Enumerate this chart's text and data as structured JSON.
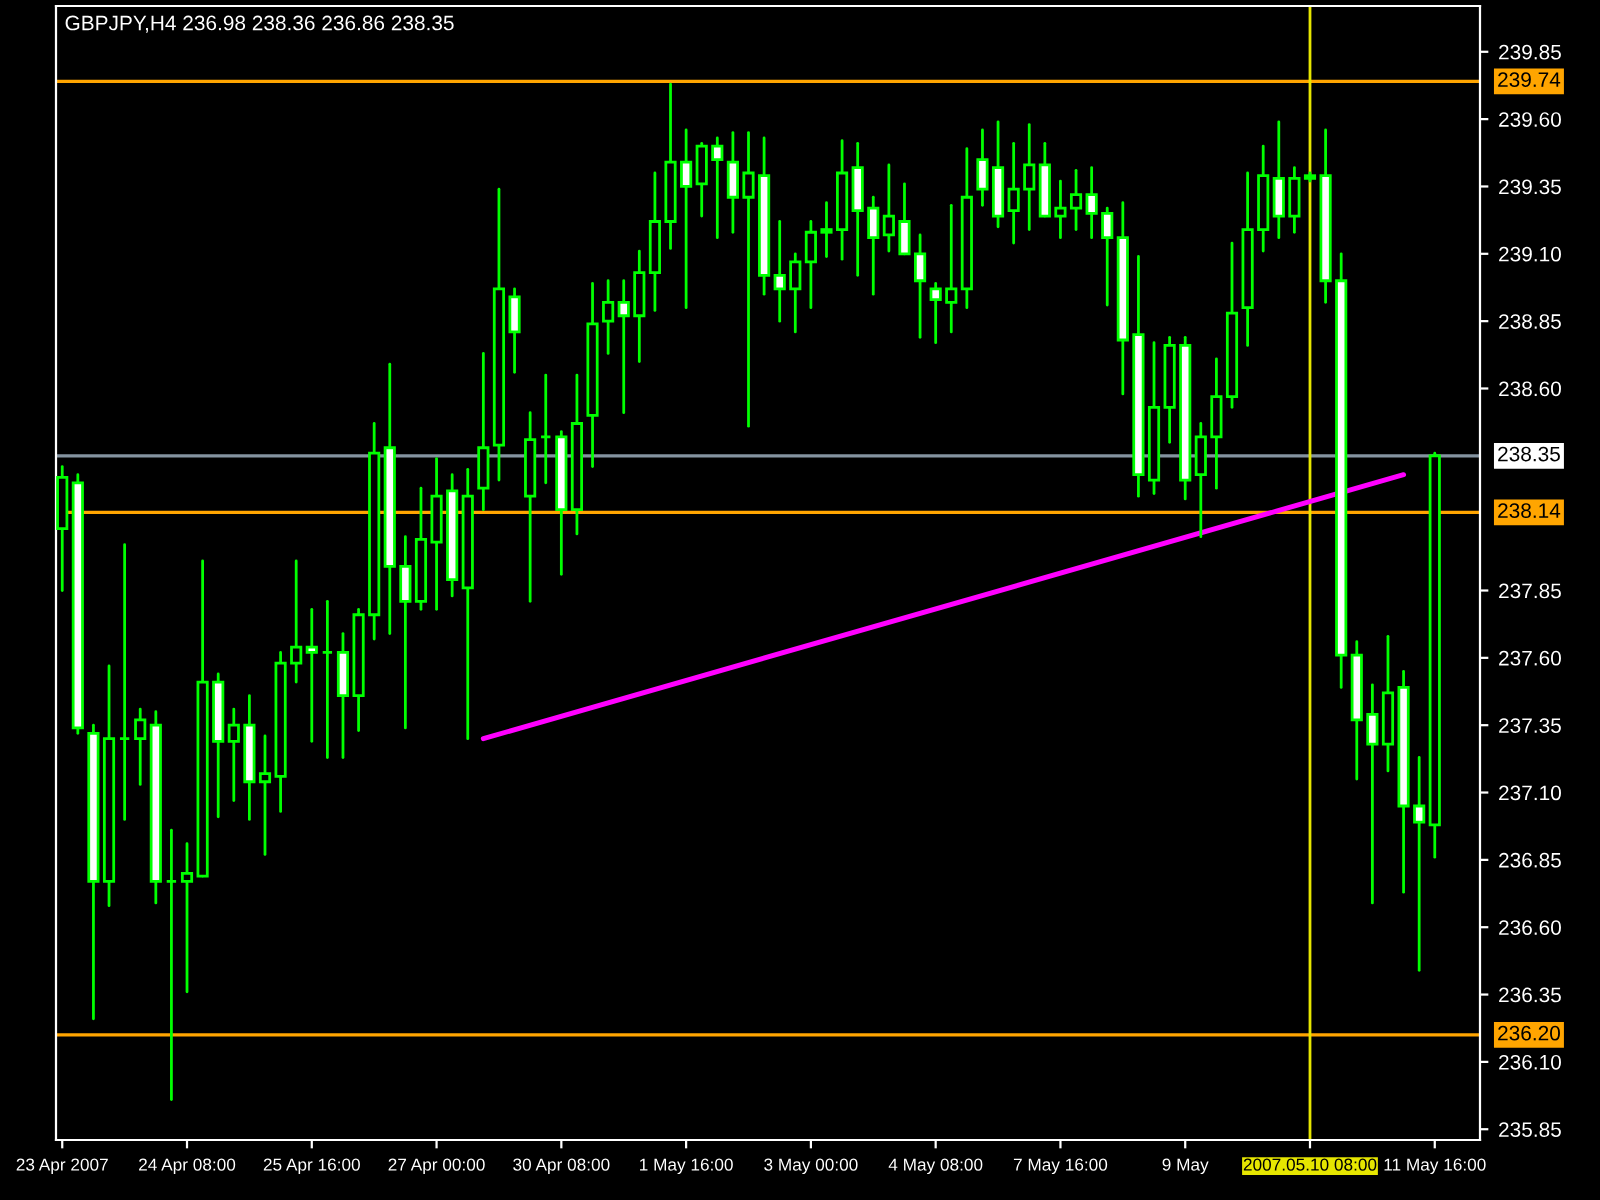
{
  "chart_data": {
    "type": "candlestick",
    "title": "GBPJPY,H4 236.98 238.36 236.86 238.35",
    "categories": [
      "23 Apr 2007",
      null,
      null,
      null,
      null,
      null,
      null,
      null,
      "24 Apr 08:00",
      null,
      null,
      null,
      null,
      null,
      null,
      null,
      "25 Apr 16:00",
      null,
      null,
      null,
      null,
      null,
      null,
      null,
      "27 Apr 00:00",
      null,
      null,
      null,
      null,
      null,
      null,
      null,
      "30 Apr 08:00",
      null,
      null,
      null,
      null,
      null,
      null,
      null,
      "1 May 16:00",
      null,
      null,
      null,
      null,
      null,
      null,
      null,
      "3 May 00:00",
      null,
      null,
      null,
      null,
      null,
      null,
      null,
      "4 May 08:00",
      null,
      null,
      null,
      null,
      null,
      null,
      null,
      "7 May 16:00",
      null,
      null,
      null,
      null,
      null,
      null,
      null,
      "9 May",
      null,
      null,
      null,
      null,
      null,
      null,
      null,
      "2007.05.10 08:00",
      null,
      null,
      null,
      null,
      null,
      null,
      null,
      "11 May 16:00"
    ],
    "ylim": [
      235.81,
      240.02
    ],
    "yticks": [
      {
        "value": 235.85,
        "label": "235.85"
      },
      {
        "value": 236.1,
        "label": "236.10"
      },
      {
        "value": 236.35,
        "label": "236.35"
      },
      {
        "value": 236.6,
        "label": "236.60"
      },
      {
        "value": 236.85,
        "label": "236.85"
      },
      {
        "value": 237.1,
        "label": "237.10"
      },
      {
        "value": 237.35,
        "label": "237.35"
      },
      {
        "value": 237.6,
        "label": "237.60"
      },
      {
        "value": 237.85,
        "label": "237.85"
      },
      {
        "value": 238.6,
        "label": "238.60"
      },
      {
        "value": 238.85,
        "label": "238.85"
      },
      {
        "value": 239.1,
        "label": "239.10"
      },
      {
        "value": 239.35,
        "label": "239.35"
      },
      {
        "value": 239.6,
        "label": "239.60"
      },
      {
        "value": 239.85,
        "label": "239.85"
      }
    ],
    "ref_lines": [
      {
        "axis": "y",
        "value": 239.74,
        "label": "239.74",
        "color": "#ffa500"
      },
      {
        "axis": "y",
        "value": 238.35,
        "label": "238.35",
        "color": "#8493a0"
      },
      {
        "axis": "y",
        "value": 238.14,
        "label": "238.14",
        "color": "#ffa500"
      },
      {
        "axis": "y",
        "value": 236.2,
        "label": "236.20",
        "color": "#ffa500"
      },
      {
        "axis": "x",
        "value": "2007.05.10 08:00",
        "color": "#e6e600"
      }
    ],
    "series": [
      {
        "color": "#00ff00",
        "ohlc": [
          [
            238.08,
            238.31,
            237.85,
            238.27
          ],
          [
            238.25,
            238.28,
            237.32,
            237.34
          ],
          [
            237.32,
            237.35,
            236.26,
            236.77
          ],
          [
            236.77,
            237.57,
            236.68,
            237.3
          ],
          [
            237.3,
            238.02,
            237.0,
            237.3
          ],
          [
            237.3,
            237.41,
            237.13,
            237.37
          ],
          [
            237.35,
            237.4,
            236.69,
            236.77
          ],
          [
            236.77,
            236.96,
            235.96,
            236.77
          ],
          [
            236.77,
            236.91,
            236.36,
            236.8
          ],
          [
            236.79,
            237.96,
            236.79,
            237.51
          ],
          [
            237.51,
            237.54,
            237.01,
            237.29
          ],
          [
            237.29,
            237.41,
            237.07,
            237.35
          ],
          [
            237.35,
            237.46,
            237.0,
            237.14
          ],
          [
            237.14,
            237.31,
            236.87,
            237.17
          ],
          [
            237.16,
            237.62,
            237.03,
            237.58
          ],
          [
            237.58,
            237.96,
            237.51,
            237.64
          ],
          [
            237.64,
            237.78,
            237.29,
            237.62
          ],
          [
            237.62,
            237.81,
            237.23,
            237.62
          ],
          [
            237.62,
            237.69,
            237.23,
            237.46
          ],
          [
            237.46,
            237.78,
            237.33,
            237.76
          ],
          [
            237.76,
            238.47,
            237.67,
            238.36
          ],
          [
            238.38,
            238.69,
            237.69,
            237.94
          ],
          [
            237.94,
            238.05,
            237.34,
            237.81
          ],
          [
            237.81,
            238.23,
            237.78,
            238.04
          ],
          [
            238.03,
            238.34,
            237.78,
            238.2
          ],
          [
            238.22,
            238.28,
            237.83,
            237.89
          ],
          [
            237.86,
            238.3,
            237.3,
            238.2
          ],
          [
            238.23,
            238.73,
            238.15,
            238.38
          ],
          [
            238.39,
            239.34,
            238.26,
            238.97
          ],
          [
            238.94,
            238.97,
            238.66,
            238.81
          ],
          [
            238.2,
            238.51,
            237.81,
            238.41
          ],
          [
            238.42,
            238.65,
            238.25,
            238.42
          ],
          [
            238.42,
            238.44,
            237.91,
            238.15
          ],
          [
            238.15,
            238.65,
            238.06,
            238.47
          ],
          [
            238.5,
            238.99,
            238.31,
            238.84
          ],
          [
            238.85,
            239.0,
            238.73,
            238.92
          ],
          [
            238.92,
            239.0,
            238.51,
            238.87
          ],
          [
            238.87,
            239.11,
            238.7,
            239.03
          ],
          [
            239.03,
            239.4,
            238.89,
            239.22
          ],
          [
            239.22,
            239.73,
            239.12,
            239.44
          ],
          [
            239.44,
            239.56,
            238.9,
            239.35
          ],
          [
            239.36,
            239.51,
            239.24,
            239.5
          ],
          [
            239.5,
            239.53,
            239.16,
            239.45
          ],
          [
            239.44,
            239.55,
            239.18,
            239.31
          ],
          [
            239.31,
            239.55,
            238.46,
            239.4
          ],
          [
            239.39,
            239.53,
            238.95,
            239.02
          ],
          [
            239.02,
            239.22,
            238.85,
            238.97
          ],
          [
            238.97,
            239.1,
            238.81,
            239.07
          ],
          [
            239.07,
            239.22,
            238.9,
            239.18
          ],
          [
            239.18,
            239.29,
            239.09,
            239.19
          ],
          [
            239.19,
            239.52,
            239.08,
            239.4
          ],
          [
            239.42,
            239.51,
            239.02,
            239.26
          ],
          [
            239.27,
            239.31,
            238.95,
            239.16
          ],
          [
            239.17,
            239.43,
            239.11,
            239.24
          ],
          [
            239.22,
            239.36,
            239.1,
            239.1
          ],
          [
            239.1,
            239.17,
            238.79,
            239.0
          ],
          [
            238.97,
            238.99,
            238.77,
            238.93
          ],
          [
            238.92,
            239.28,
            238.81,
            238.97
          ],
          [
            238.97,
            239.49,
            238.9,
            239.31
          ],
          [
            239.45,
            239.56,
            239.28,
            239.34
          ],
          [
            239.42,
            239.59,
            239.2,
            239.24
          ],
          [
            239.26,
            239.51,
            239.14,
            239.34
          ],
          [
            239.34,
            239.58,
            239.19,
            239.43
          ],
          [
            239.43,
            239.51,
            239.24,
            239.24
          ],
          [
            239.24,
            239.37,
            239.16,
            239.27
          ],
          [
            239.27,
            239.41,
            239.19,
            239.32
          ],
          [
            239.32,
            239.42,
            239.16,
            239.25
          ],
          [
            239.25,
            239.27,
            238.91,
            239.16
          ],
          [
            239.16,
            239.29,
            238.58,
            238.78
          ],
          [
            238.8,
            239.09,
            238.2,
            238.28
          ],
          [
            238.26,
            238.77,
            238.21,
            238.53
          ],
          [
            238.53,
            238.79,
            238.4,
            238.76
          ],
          [
            238.76,
            238.79,
            238.19,
            238.26
          ],
          [
            238.28,
            238.47,
            238.05,
            238.42
          ],
          [
            238.42,
            238.71,
            238.23,
            238.57
          ],
          [
            238.57,
            239.14,
            238.53,
            238.88
          ],
          [
            238.9,
            239.4,
            238.76,
            239.19
          ],
          [
            239.19,
            239.5,
            239.11,
            239.39
          ],
          [
            239.38,
            239.59,
            239.16,
            239.24
          ],
          [
            239.24,
            239.42,
            239.18,
            239.38
          ],
          [
            239.38,
            239.4,
            239.37,
            239.39
          ],
          [
            239.39,
            239.56,
            238.92,
            239.0
          ],
          [
            239.0,
            239.1,
            237.49,
            237.61
          ],
          [
            237.61,
            237.66,
            237.15,
            237.37
          ],
          [
            237.39,
            237.5,
            236.69,
            237.28
          ],
          [
            237.28,
            237.68,
            237.18,
            237.47
          ],
          [
            237.49,
            237.55,
            236.73,
            237.05
          ],
          [
            237.05,
            237.23,
            236.44,
            236.99
          ],
          [
            236.98,
            238.36,
            236.86,
            238.35
          ]
        ]
      },
      {
        "type": "line",
        "color": "#ff00ff",
        "values": [
          null,
          null,
          null,
          null,
          null,
          null,
          null,
          null,
          null,
          null,
          null,
          null,
          null,
          null,
          null,
          null,
          null,
          null,
          null,
          null,
          null,
          null,
          null,
          null,
          null,
          null,
          null,
          237.3,
          null,
          null,
          null,
          null,
          null,
          null,
          null,
          null,
          null,
          null,
          null,
          null,
          null,
          null,
          null,
          null,
          null,
          null,
          null,
          null,
          null,
          null,
          null,
          null,
          null,
          null,
          null,
          null,
          null,
          null,
          null,
          null,
          null,
          null,
          null,
          null,
          null,
          null,
          null,
          null,
          null,
          null,
          null,
          null,
          null,
          null,
          null,
          null,
          null,
          null,
          null,
          null,
          null,
          null,
          null,
          null,
          null,
          null,
          238.28,
          null,
          null
        ]
      }
    ]
  }
}
